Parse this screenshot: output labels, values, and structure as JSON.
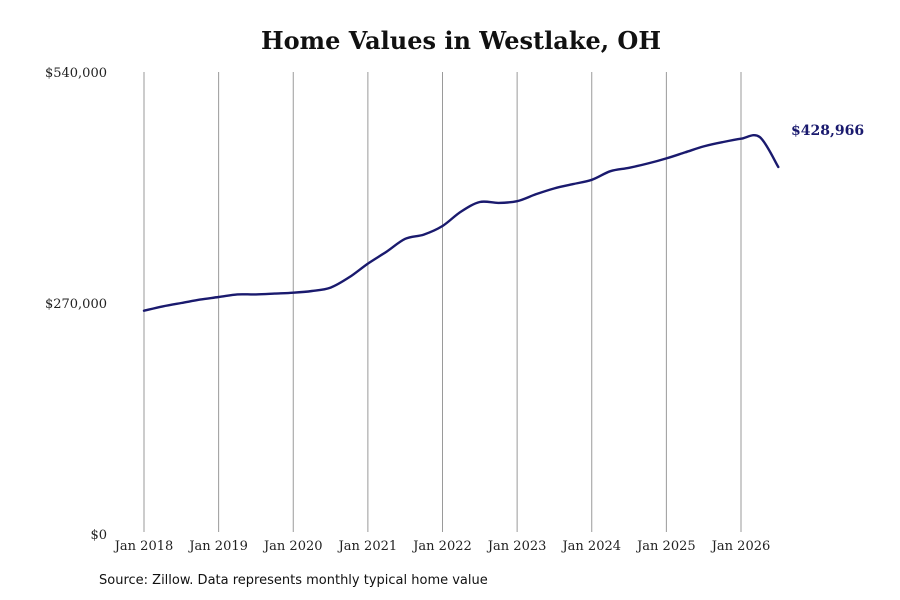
{
  "chart_data": {
    "type": "line",
    "title": "Home Values in Westlake, OH",
    "xlabel": "",
    "ylabel": "",
    "ylim": [
      0,
      540000
    ],
    "y_ticks": [
      "$0",
      "$270,000",
      "$540,000"
    ],
    "y_tick_values": [
      0,
      270000,
      540000
    ],
    "x_ticks": [
      "Jan 2018",
      "Jan 2019",
      "Jan 2020",
      "Jan 2021",
      "Jan 2022",
      "Jan 2023",
      "Jan 2024",
      "Jan 2025",
      "Jan 2026"
    ],
    "x_tick_values": [
      2018.0,
      2019.0,
      2020.0,
      2021.0,
      2022.0,
      2023.0,
      2024.0,
      2025.0,
      2026.0
    ],
    "xlim": [
      2018.0,
      2026.5
    ],
    "grid": "vertical",
    "line_color": "#1a1a6e",
    "end_label": "$428,966",
    "series": [
      {
        "x": [
          2018.0,
          2018.25,
          2018.5,
          2018.75,
          2019.0,
          2019.25,
          2019.5,
          2019.75,
          2020.0,
          2020.25,
          2020.5,
          2020.75,
          2021.0,
          2021.25,
          2021.5,
          2021.75,
          2022.0,
          2022.25,
          2022.5,
          2022.75,
          2023.0,
          2023.25,
          2023.5,
          2023.75,
          2024.0,
          2024.25,
          2024.5,
          2024.75,
          2025.0,
          2025.25,
          2025.5,
          2025.75,
          2026.0,
          2026.25,
          2026.5
        ],
        "values": [
          261000,
          266000,
          270000,
          274000,
          277000,
          280000,
          280000,
          281000,
          282000,
          284000,
          288000,
          300000,
          316000,
          330000,
          345000,
          350000,
          360000,
          377000,
          388000,
          387000,
          389000,
          397000,
          404000,
          409000,
          414000,
          424000,
          428000,
          433000,
          439000,
          446000,
          453000,
          458000,
          462000,
          464000,
          428966
        ]
      }
    ]
  },
  "source": "Source: Zillow. Data represents monthly typical home value"
}
